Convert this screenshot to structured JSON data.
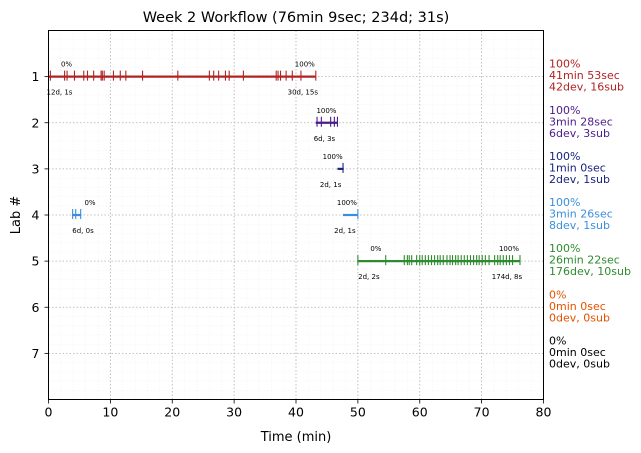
{
  "chart_data": {
    "type": "timeline",
    "title": "Week 2 Workflow (76min 9sec; 234d; 31s)",
    "xlabel": "Time (min)",
    "ylabel": "Lab #",
    "xlim": [
      0,
      80
    ],
    "ylim": [
      8,
      0
    ],
    "xticks": [
      "0",
      "10",
      "20",
      "30",
      "40",
      "50",
      "60",
      "70",
      "80"
    ],
    "yticks": [
      "1",
      "2",
      "3",
      "4",
      "5",
      "6",
      "7"
    ],
    "grid": true,
    "labs": [
      {
        "lab": 1,
        "color": "#b22222",
        "start": 0,
        "end": 43.2,
        "ticks": [
          0.3,
          2.6,
          3.0,
          4.2,
          5.7,
          6.3,
          7.3,
          8.5,
          8.7,
          9.0,
          10.5,
          11.6,
          12.5,
          15.2,
          20.9,
          26.0,
          26.7,
          27.5,
          28.6,
          29.2,
          31.5,
          36.8,
          37.1,
          37.5,
          38.4,
          39.4,
          40.8,
          43.2
        ],
        "start_pct": "0%",
        "end_pct": "100%",
        "start_counts": "12d, 1s",
        "end_counts": "30d, 15s",
        "summary": [
          "100%",
          "41min 53sec",
          "42dev, 16sub"
        ]
      },
      {
        "lab": 2,
        "color": "#4b1c8c",
        "start": 43.2,
        "end": 46.7,
        "ticks": [
          43.4,
          44.1,
          45.6,
          46.2,
          46.7
        ],
        "start_pct": "",
        "end_pct": "100%",
        "start_counts": "",
        "end_counts": "6d, 3s",
        "summary": [
          "100%",
          "3min 28sec",
          "6dev, 3sub"
        ]
      },
      {
        "lab": 3,
        "color": "#1a237e",
        "start": 46.7,
        "end": 47.7,
        "ticks": [
          47.6
        ],
        "start_pct": "",
        "end_pct": "100%",
        "start_counts": "",
        "end_counts": "2d, 1s",
        "summary": [
          "100%",
          "1min 0sec",
          "2dev, 1sub"
        ]
      },
      {
        "lab": 4,
        "color": "#3a8fdc",
        "start": 3.8,
        "end": 5.3,
        "start2": 47.6,
        "end2": 50.0,
        "ticks": [
          3.9,
          4.4,
          5.2,
          50.0
        ],
        "start_pct": "0%",
        "end_pct": "100%",
        "start_counts": "6d, 0s",
        "end_counts": "2d, 1s",
        "summary": [
          "100%",
          "3min 26sec",
          "8dev, 1sub"
        ]
      },
      {
        "lab": 5,
        "color": "#2e8b2e",
        "start": 50.0,
        "end": 76.2,
        "ticks": [
          50.0,
          54.5,
          57.5,
          58.0,
          58.3,
          58.7,
          59.5,
          60.0,
          60.4,
          60.9,
          61.4,
          61.9,
          62.4,
          62.9,
          63.3,
          63.8,
          64.4,
          64.9,
          65.3,
          65.8,
          66.2,
          66.7,
          67.2,
          67.7,
          68.2,
          68.7,
          69.2,
          69.6,
          70.1,
          70.6,
          71.2,
          72.1,
          72.6,
          73.0,
          73.5,
          74.0,
          74.5,
          75.0,
          76.2
        ],
        "start_pct": "0%",
        "end_pct": "100%",
        "start_counts": "2d, 2s",
        "end_counts": "174d, 8s",
        "summary": [
          "100%",
          "26min 22sec",
          "176dev, 10sub"
        ]
      },
      {
        "lab": 6,
        "color": "#e65100",
        "start": null,
        "end": null,
        "ticks": [],
        "start_pct": "",
        "end_pct": "",
        "start_counts": "",
        "end_counts": "",
        "summary": [
          "0%",
          "0min 0sec",
          "0dev, 0sub"
        ]
      },
      {
        "lab": 7,
        "color": "#000000",
        "start": null,
        "end": null,
        "ticks": [],
        "start_pct": "",
        "end_pct": "",
        "start_counts": "",
        "end_counts": "",
        "summary": [
          "0%",
          "0min 0sec",
          "0dev, 0sub"
        ]
      }
    ]
  }
}
